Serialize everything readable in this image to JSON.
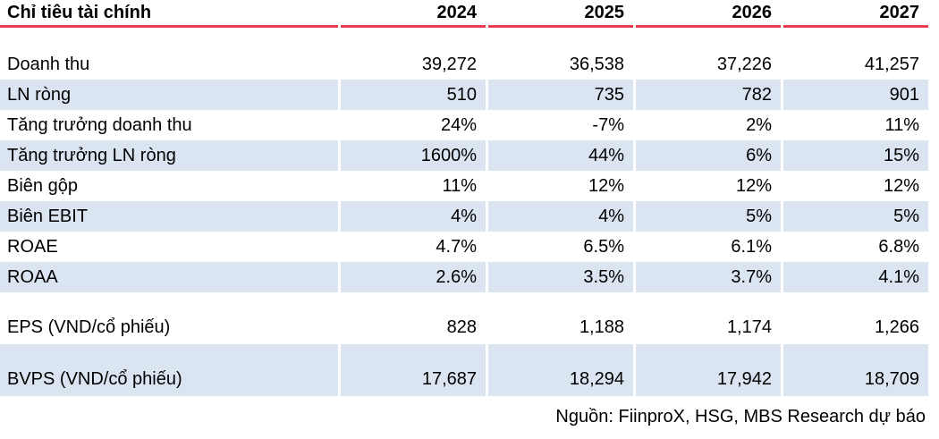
{
  "table": {
    "header": {
      "label": "Chỉ tiêu tài chính",
      "years": [
        "2024",
        "2025",
        "2026",
        "2027"
      ]
    },
    "rows": [
      {
        "label": "Doanh thu",
        "values": [
          "39,272",
          "36,538",
          "37,226",
          "41,257"
        ]
      },
      {
        "label": "LN ròng",
        "values": [
          "510",
          "735",
          "782",
          "901"
        ]
      },
      {
        "label": "Tăng trưởng doanh thu",
        "values": [
          "24%",
          "-7%",
          "2%",
          "11%"
        ]
      },
      {
        "label": "Tăng trưởng LN ròng",
        "values": [
          "1600%",
          "44%",
          "6%",
          "15%"
        ]
      },
      {
        "label": "Biên gộp",
        "values": [
          "11%",
          "12%",
          "12%",
          "12%"
        ]
      },
      {
        "label": "Biên EBIT",
        "values": [
          "4%",
          "4%",
          "5%",
          "5%"
        ]
      },
      {
        "label": "ROAE",
        "values": [
          "4.7%",
          "6.5%",
          "6.1%",
          "6.8%"
        ]
      },
      {
        "label": "ROAA",
        "values": [
          "2.6%",
          "3.5%",
          "3.7%",
          "4.1%"
        ]
      },
      {
        "label": "EPS (VND/cổ phiếu)",
        "values": [
          "828",
          "1,188",
          "1,174",
          "1,266"
        ]
      },
      {
        "label": "BVPS (VND/cổ phiếu)",
        "values": [
          "17,687",
          "18,294",
          "17,942",
          "18,709"
        ]
      }
    ],
    "source_note": "Nguồn: FiinproX, HSG, MBS Research dự báo"
  },
  "chart_data": {
    "type": "table",
    "title": "Chỉ tiêu tài chính",
    "categories": [
      "2024",
      "2025",
      "2026",
      "2027"
    ],
    "series": [
      {
        "name": "Doanh thu",
        "values": [
          39272,
          36538,
          37226,
          41257
        ]
      },
      {
        "name": "LN ròng",
        "values": [
          510,
          735,
          782,
          901
        ]
      },
      {
        "name": "Tăng trưởng doanh thu",
        "values": [
          "24%",
          "-7%",
          "2%",
          "11%"
        ]
      },
      {
        "name": "Tăng trưởng LN ròng",
        "values": [
          "1600%",
          "44%",
          "6%",
          "15%"
        ]
      },
      {
        "name": "Biên gộp",
        "values": [
          "11%",
          "12%",
          "12%",
          "12%"
        ]
      },
      {
        "name": "Biên EBIT",
        "values": [
          "4%",
          "4%",
          "5%",
          "5%"
        ]
      },
      {
        "name": "ROAE",
        "values": [
          "4.7%",
          "6.5%",
          "6.1%",
          "6.8%"
        ]
      },
      {
        "name": "ROAA",
        "values": [
          "2.6%",
          "3.5%",
          "3.7%",
          "4.1%"
        ]
      },
      {
        "name": "EPS (VND/cổ phiếu)",
        "values": [
          828,
          1188,
          1174,
          1266
        ]
      },
      {
        "name": "BVPS (VND/cổ phiếu)",
        "values": [
          17687,
          18294,
          17942,
          18709
        ]
      }
    ]
  },
  "colors": {
    "header_rule_red": "#e73b53",
    "stripe_blue": "#dbe5f1",
    "text": "#000000",
    "background": "#ffffff"
  }
}
